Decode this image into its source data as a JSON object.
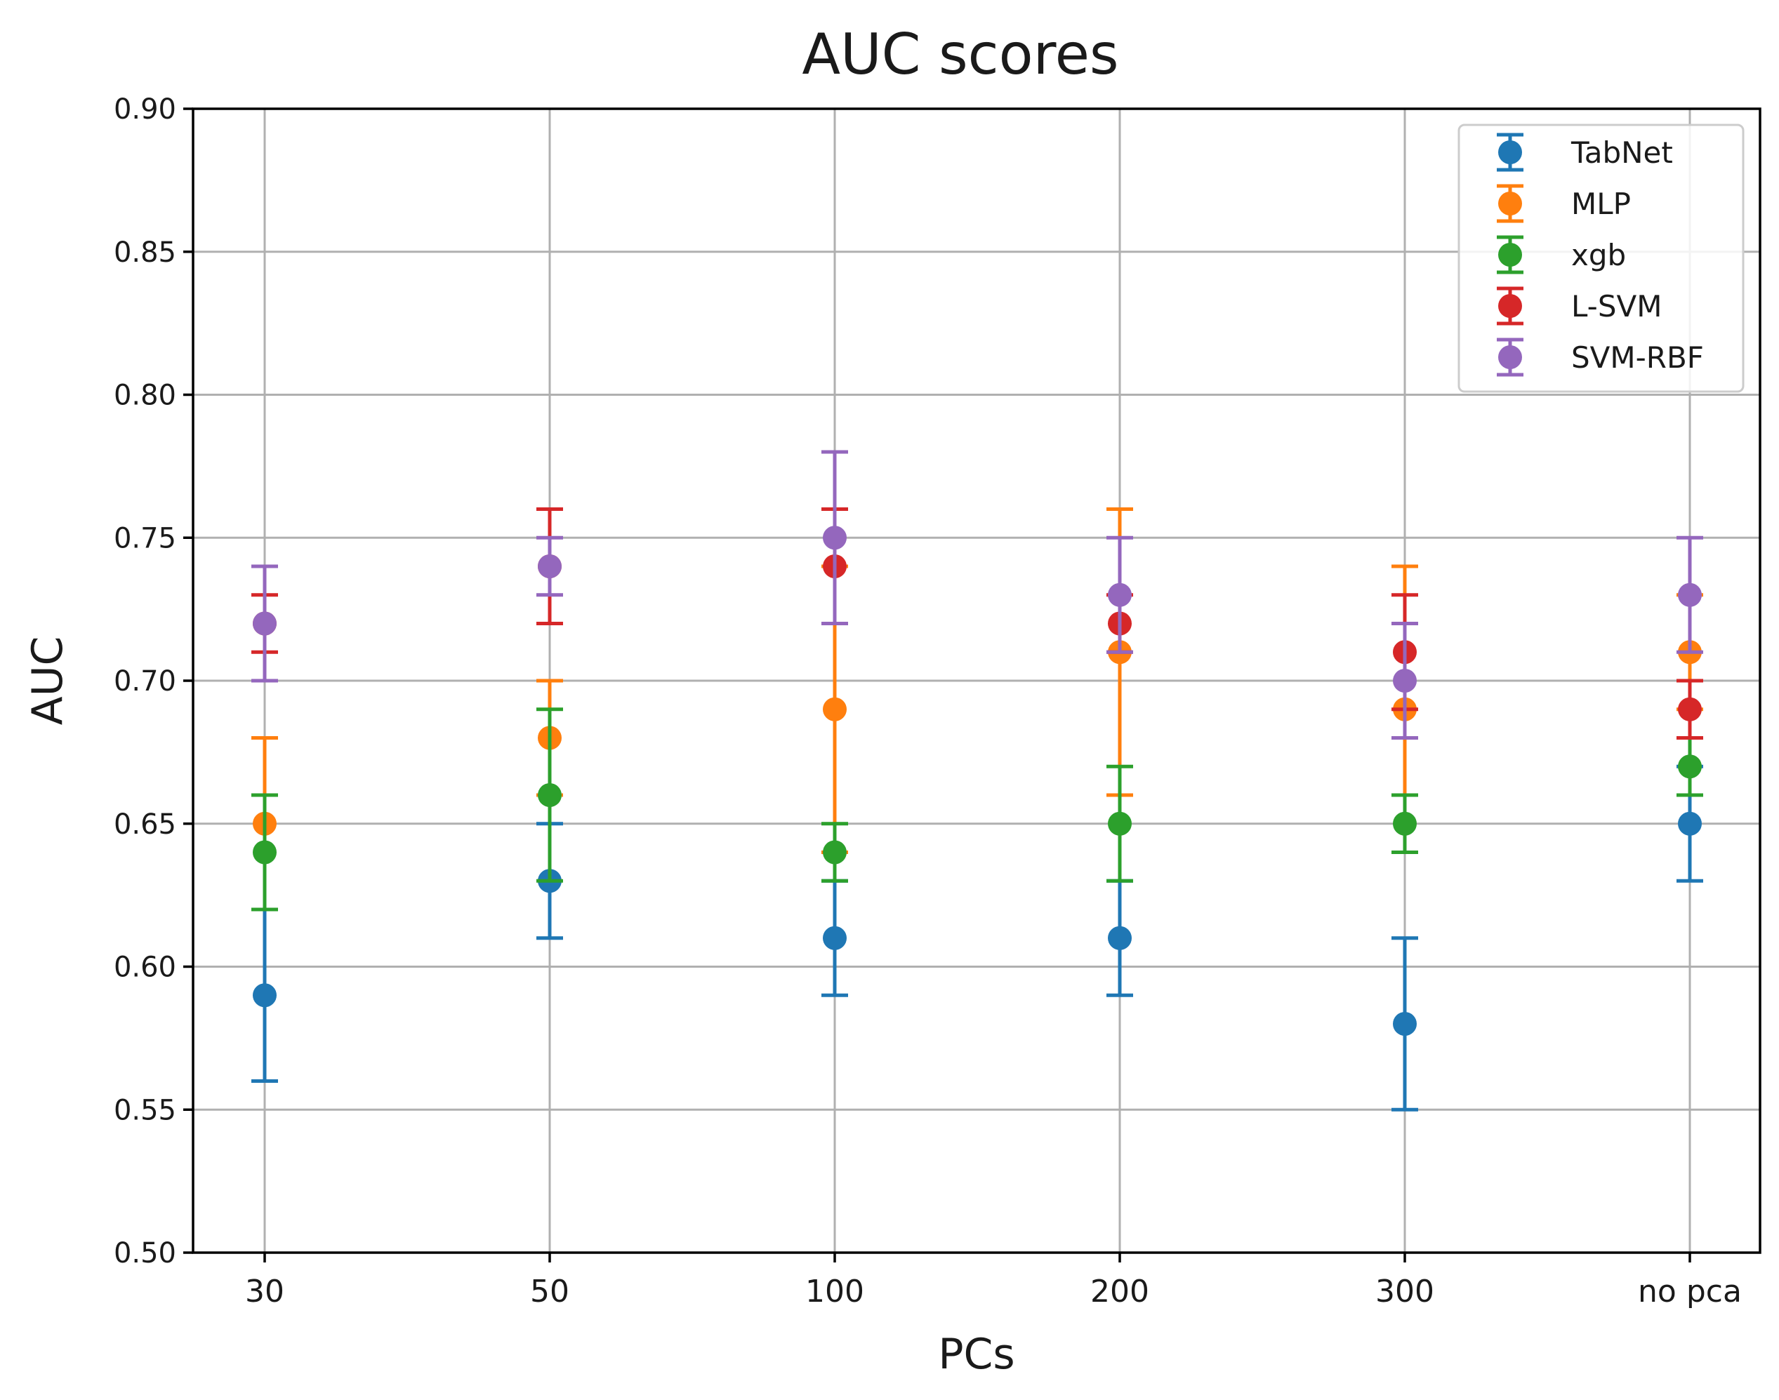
{
  "chart_data": {
    "type": "errorbar",
    "title": "AUC scores",
    "xlabel": "PCs",
    "ylabel": "AUC",
    "categories": [
      "30",
      "50",
      "100",
      "200",
      "300",
      "no pca"
    ],
    "ylim": [
      0.5,
      0.9
    ],
    "yticks": [
      "0.50",
      "0.55",
      "0.60",
      "0.65",
      "0.70",
      "0.75",
      "0.80",
      "0.85",
      "0.90"
    ],
    "grid": true,
    "legend_position": "top-right",
    "series": [
      {
        "name": "TabNet",
        "color": "#1f77b4",
        "values": [
          0.59,
          0.63,
          0.61,
          0.61,
          0.58,
          0.65
        ],
        "lower": [
          0.56,
          0.61,
          0.59,
          0.59,
          0.55,
          0.63
        ],
        "upper": [
          0.62,
          0.65,
          0.63,
          0.63,
          0.61,
          0.67
        ]
      },
      {
        "name": "MLP",
        "color": "#ff7f0e",
        "values": [
          0.65,
          0.68,
          0.69,
          0.71,
          0.69,
          0.71
        ],
        "lower": [
          0.62,
          0.66,
          0.64,
          0.66,
          0.64,
          0.69
        ],
        "upper": [
          0.68,
          0.7,
          0.74,
          0.76,
          0.74,
          0.73
        ]
      },
      {
        "name": "xgb",
        "color": "#2ca02c",
        "values": [
          0.64,
          0.66,
          0.64,
          0.65,
          0.65,
          0.67
        ],
        "lower": [
          0.62,
          0.63,
          0.63,
          0.63,
          0.64,
          0.66
        ],
        "upper": [
          0.66,
          0.69,
          0.65,
          0.67,
          0.66,
          0.68
        ]
      },
      {
        "name": "L-SVM",
        "color": "#d62728",
        "values": [
          0.72,
          0.74,
          0.74,
          0.72,
          0.71,
          0.69
        ],
        "lower": [
          0.71,
          0.72,
          0.72,
          0.71,
          0.69,
          0.68
        ],
        "upper": [
          0.73,
          0.76,
          0.76,
          0.73,
          0.73,
          0.7
        ]
      },
      {
        "name": "SVM-RBF",
        "color": "#9467bd",
        "values": [
          0.72,
          0.74,
          0.75,
          0.73,
          0.7,
          0.73
        ],
        "lower": [
          0.7,
          0.73,
          0.72,
          0.71,
          0.68,
          0.71
        ],
        "upper": [
          0.74,
          0.75,
          0.78,
          0.75,
          0.72,
          0.75
        ]
      }
    ]
  }
}
